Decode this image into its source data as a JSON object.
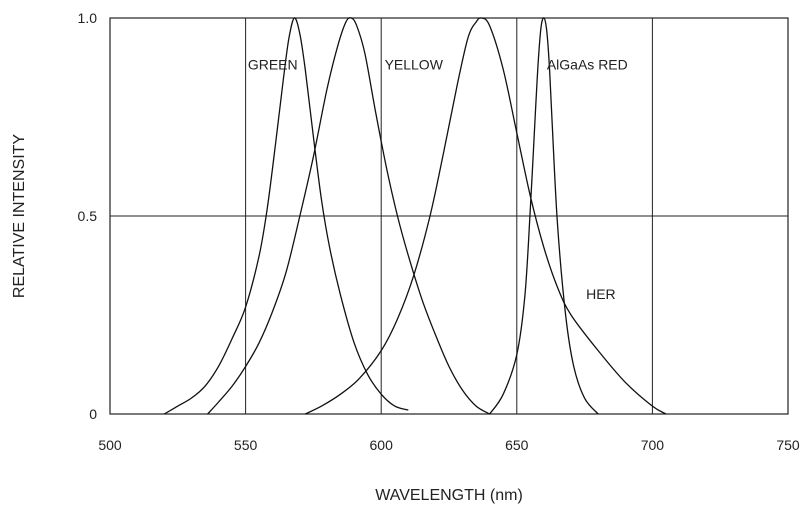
{
  "chart_data": {
    "type": "line",
    "title": "",
    "xlabel": "WAVELENGTH (nm)",
    "ylabel": "RELATIVE INTENSITY",
    "xlim": [
      500,
      750
    ],
    "ylim": [
      0,
      1.0
    ],
    "x_ticks": [
      "500",
      "550",
      "600",
      "650",
      "700",
      "750"
    ],
    "y_ticks": [
      "0",
      "0.5",
      "1.0"
    ],
    "x_grid": [
      550,
      600,
      650,
      700
    ],
    "y_grid": [
      0.5
    ],
    "series": [
      {
        "name": "GREEN",
        "x": [
          520,
          525,
          530,
          535,
          540,
          545,
          550,
          555,
          558,
          561,
          564,
          566,
          568,
          570,
          572,
          575,
          578,
          581,
          585,
          590,
          595,
          600,
          605,
          610
        ],
        "y": [
          0.0,
          0.02,
          0.04,
          0.07,
          0.12,
          0.19,
          0.27,
          0.4,
          0.52,
          0.68,
          0.85,
          0.95,
          1.0,
          0.96,
          0.87,
          0.7,
          0.54,
          0.42,
          0.3,
          0.18,
          0.1,
          0.05,
          0.02,
          0.01
        ]
      },
      {
        "name": "YELLOW",
        "x": [
          536,
          540,
          545,
          550,
          555,
          560,
          565,
          570,
          575,
          580,
          584,
          587,
          589,
          591,
          594,
          598,
          602,
          606,
          610,
          615,
          620,
          625,
          630,
          635,
          640
        ],
        "y": [
          0.0,
          0.03,
          0.07,
          0.12,
          0.18,
          0.26,
          0.36,
          0.5,
          0.65,
          0.82,
          0.93,
          0.99,
          1.0,
          0.98,
          0.91,
          0.76,
          0.62,
          0.5,
          0.4,
          0.29,
          0.2,
          0.12,
          0.06,
          0.02,
          0.0
        ]
      },
      {
        "name": "HER",
        "x": [
          572,
          578,
          585,
          592,
          600,
          606,
          612,
          618,
          623,
          628,
          632,
          635,
          637,
          640,
          645,
          650,
          655,
          660,
          665,
          670,
          680,
          690,
          700,
          705
        ],
        "y": [
          0.0,
          0.02,
          0.05,
          0.09,
          0.16,
          0.24,
          0.35,
          0.5,
          0.66,
          0.83,
          0.95,
          0.99,
          1.0,
          0.98,
          0.87,
          0.71,
          0.55,
          0.42,
          0.32,
          0.25,
          0.16,
          0.08,
          0.02,
          0.0
        ]
      },
      {
        "name": "AlGaAs RED",
        "x": [
          640,
          645,
          650,
          653,
          655,
          657,
          658,
          659,
          660,
          661,
          662,
          663,
          665,
          668,
          671,
          675,
          680
        ],
        "y": [
          0.0,
          0.05,
          0.15,
          0.3,
          0.52,
          0.78,
          0.9,
          0.98,
          1.0,
          0.97,
          0.88,
          0.74,
          0.48,
          0.25,
          0.12,
          0.04,
          0.0
        ]
      }
    ],
    "annotations": [
      {
        "text": "GREEN",
        "x": 560,
        "y": 0.87
      },
      {
        "text": "YELLOW",
        "x": 612,
        "y": 0.87
      },
      {
        "text": "AlGaAs RED",
        "x": 676,
        "y": 0.87
      },
      {
        "text": "HER",
        "x": 681,
        "y": 0.29
      }
    ]
  }
}
